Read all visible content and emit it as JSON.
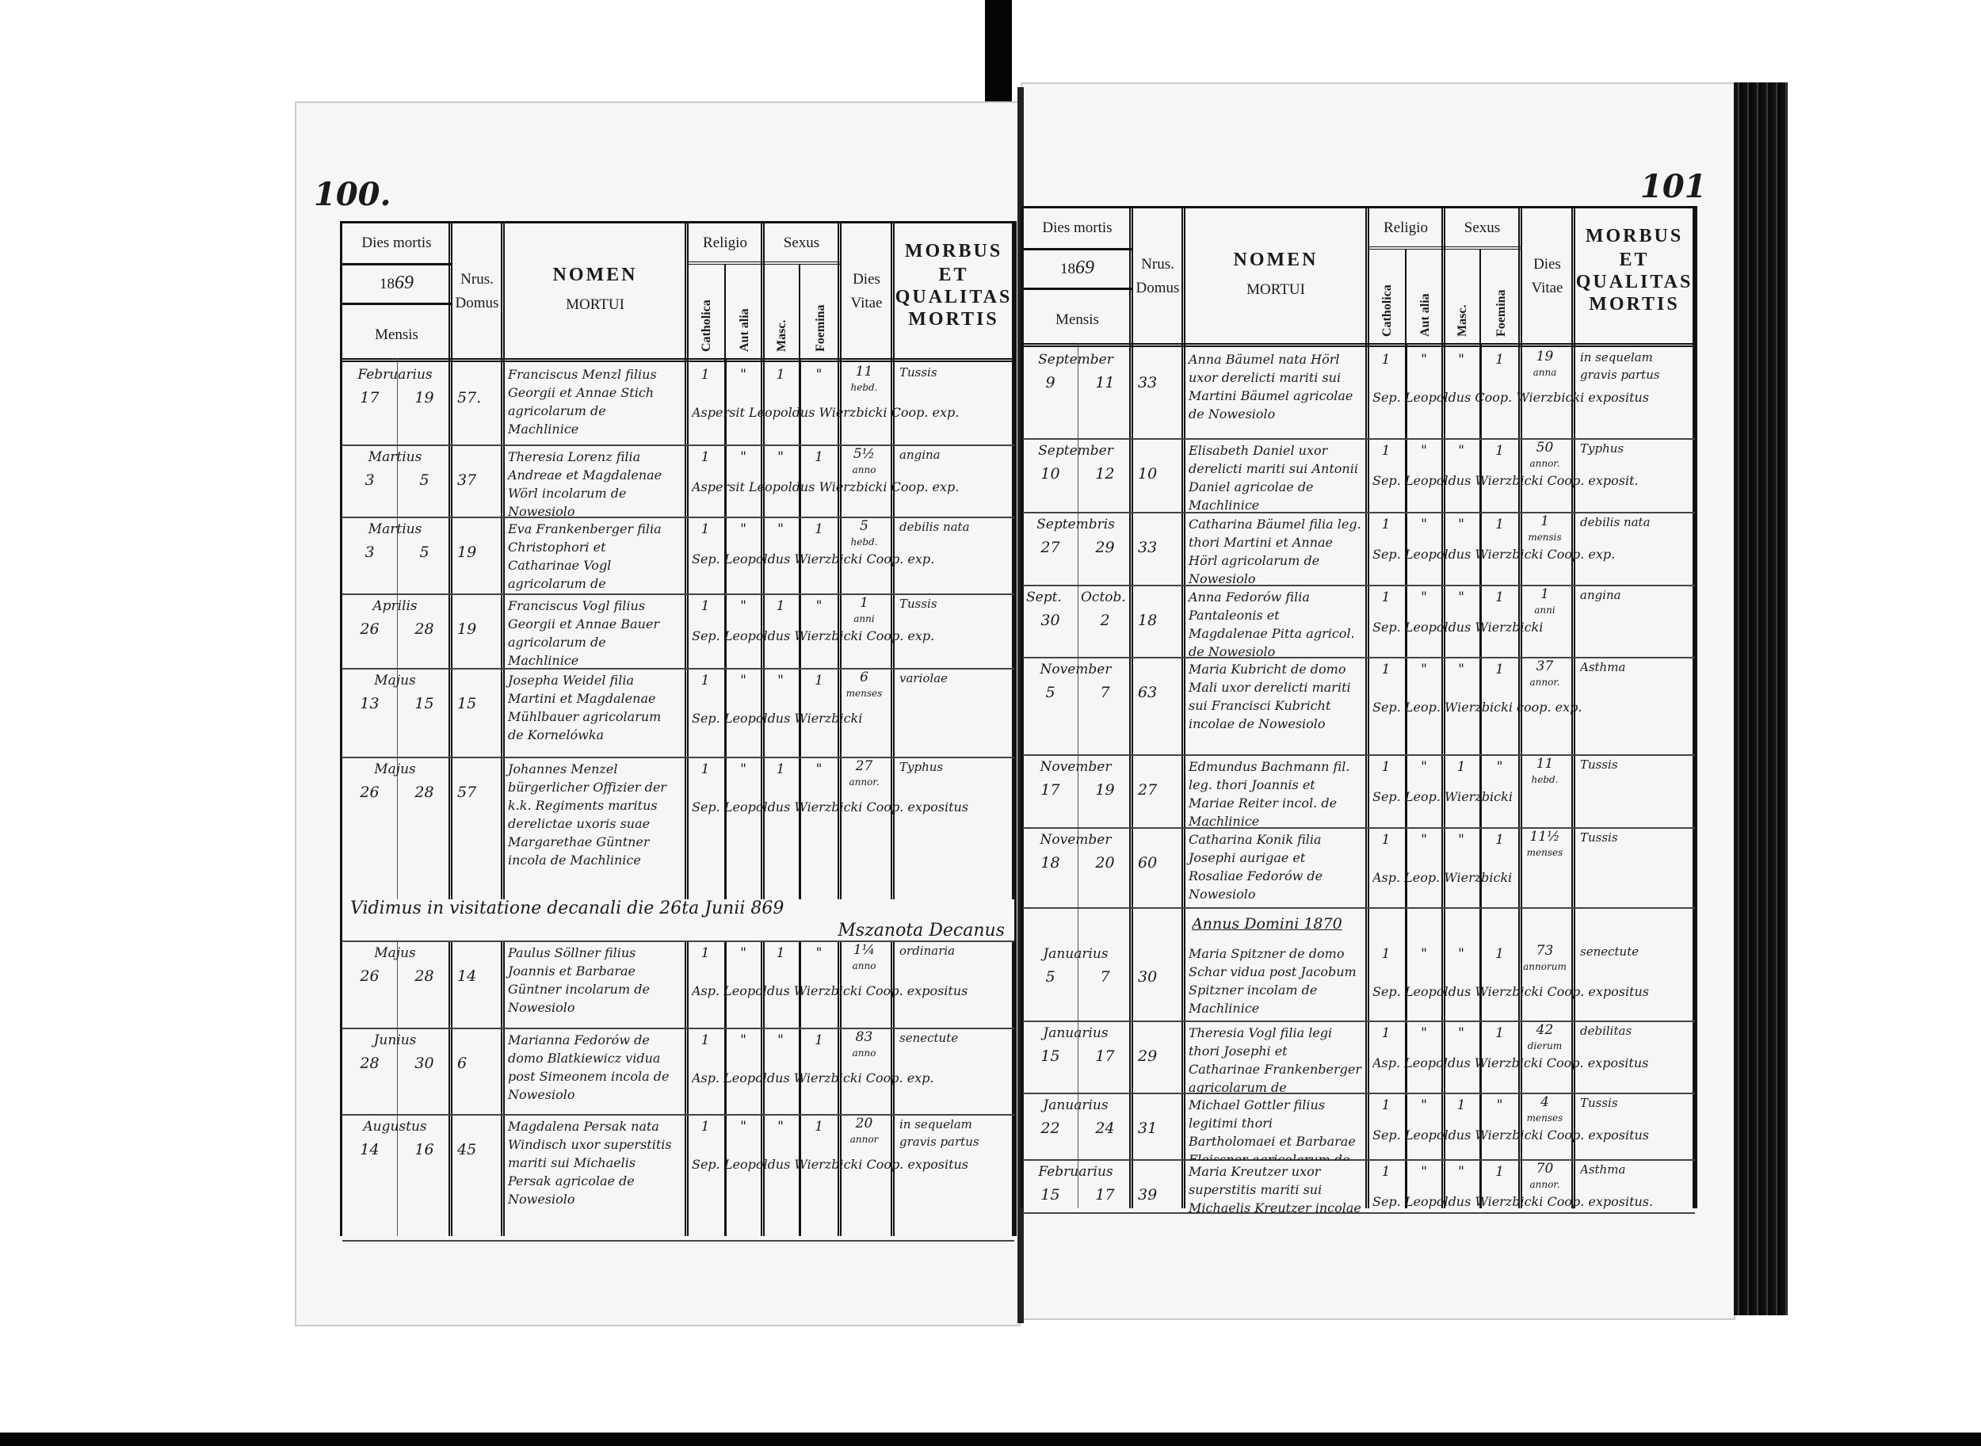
{
  "header": {
    "dies_mortis": "Dies mortis",
    "year_prefix": "18",
    "year_hand": "69",
    "mensis": "Mensis",
    "nrus": "Nrus.",
    "domus": "Domus",
    "nomen": "NOMEN",
    "mortui": "MORTUI",
    "religio": "Religio",
    "catholica": "Catholica",
    "aut_alia": "Aut alia",
    "sexus": "Sexus",
    "masc": "Masc.",
    "foemina": "Foemina",
    "dies": "Dies",
    "vitae": "Vitae",
    "morbus": "MORBUS",
    "et": "ET",
    "qualitas": "QUALITAS",
    "mortis": "MORTIS"
  },
  "pages": [
    {
      "page_number": "100.",
      "rows": [
        {
          "type": "entry",
          "month": "Februarius",
          "d1": "17",
          "d2": "19",
          "domus": "57.",
          "name": "Franciscus Menzl filius Georgii et Annae Stich agricolarum de Machlinice",
          "cath": "1",
          "alia": "\"",
          "masc": "1",
          "foem": "\"",
          "age": "11",
          "unit": "hebd.",
          "morbus": "Tussis",
          "sep": "Aspersit Leopoldus Wierzbicki Coop. exp."
        },
        {
          "type": "entry",
          "month": "Martius",
          "d1": "3",
          "d2": "5",
          "domus": "37",
          "name": "Theresia Lorenz filia Andreae et Magdalenae Wörl incolarum de Nowesiolo",
          "cath": "1",
          "alia": "\"",
          "masc": "\"",
          "foem": "1",
          "age": "5½",
          "unit": "anno",
          "morbus": "angina",
          "sep": "Aspersit Leopoldus Wierzbicki Coop. exp."
        },
        {
          "type": "entry",
          "month": "Martius",
          "d1": "3",
          "d2": "5",
          "domus": "19",
          "name": "Eva Frankenberger filia Christophori et Catharinae Vogl agricolarum de Tezydorówka",
          "cath": "1",
          "alia": "\"",
          "masc": "\"",
          "foem": "1",
          "age": "5",
          "unit": "hebd.",
          "morbus": "debilis nata",
          "sep": "Sep. Leopoldus Wierzbicki Coop. exp."
        },
        {
          "type": "entry",
          "month": "Aprilis",
          "d1": "26",
          "d2": "28",
          "domus": "19",
          "name": "Franciscus Vogl filius Georgii et Annae Bauer agricolarum de Machlinice",
          "cath": "1",
          "alia": "\"",
          "masc": "1",
          "foem": "\"",
          "age": "1",
          "unit": "anni",
          "morbus": "Tussis",
          "sep": "Sep. Leopoldus Wierzbicki Coop. exp."
        },
        {
          "type": "entry",
          "month": "Majus",
          "d1": "13",
          "d2": "15",
          "domus": "15",
          "name": "Josepha Weidel filia Martini et Magdalenae Mühlbauer agricolarum de Kornelówka",
          "cath": "1",
          "alia": "\"",
          "masc": "\"",
          "foem": "1",
          "age": "6",
          "unit": "menses",
          "morbus": "variolae",
          "sep": "Sep. Leopoldus Wierzbicki"
        },
        {
          "type": "entry",
          "month": "Majus",
          "d1": "26",
          "d2": "28",
          "domus": "57",
          "name": "Johannes Menzel bürgerlicher Offizier der k.k. Regiments maritus derelictae uxoris suae Margarethae Güntner incola de Machlinice",
          "cath": "1",
          "alia": "\"",
          "masc": "1",
          "foem": "\"",
          "age": "27",
          "unit": "annor.",
          "morbus": "Typhus",
          "sep": "Sep. Leopoldus Wierzbicki Coop. expositus"
        },
        {
          "type": "note",
          "text": "Vidimus in visitatione decanali die 26ta Junii 869",
          "signature": "Mszanota Decanus"
        },
        {
          "type": "entry",
          "month": "Majus",
          "d1": "26",
          "d2": "28",
          "domus": "14",
          "name": "Paulus Söllner filius Joannis et Barbarae Güntner incolarum de Nowesiolo",
          "cath": "1",
          "alia": "\"",
          "masc": "1",
          "foem": "\"",
          "age": "1¼",
          "unit": "anno",
          "morbus": "ordinaria",
          "sep": "Asp. Leopoldus Wierzbicki Coop. expositus"
        },
        {
          "type": "entry",
          "month": "Junius",
          "d1": "28",
          "d2": "30",
          "domus": "6",
          "name": "Marianna Fedorów de domo Blatkiewicz vidua post Simeonem incola de Nowesiolo",
          "cath": "1",
          "alia": "\"",
          "masc": "\"",
          "foem": "1",
          "age": "83",
          "unit": "anno",
          "morbus": "senectute",
          "sep": "Asp. Leopoldus Wierzbicki Coop. exp."
        },
        {
          "type": "entry",
          "month": "Augustus",
          "d1": "14",
          "d2": "16",
          "domus": "45",
          "name": "Magdalena Persak nata Windisch uxor superstitis mariti sui Michaelis Persak agricolae de Nowesiolo",
          "cath": "1",
          "alia": "\"",
          "masc": "\"",
          "foem": "1",
          "age": "20",
          "unit": "annor",
          "morbus": "in sequelam gravis partus",
          "sep": "Sep. Leopoldus Wierzbicki Coop. expositus"
        }
      ]
    },
    {
      "page_number": "101",
      "rows": [
        {
          "type": "entry",
          "month": "September",
          "d1": "9",
          "d2": "11",
          "domus": "33",
          "name": "Anna Bäumel nata Hörl uxor derelicti mariti sui Martini Bäumel agricolae de Nowesiolo",
          "cath": "1",
          "alia": "\"",
          "masc": "\"",
          "foem": "1",
          "age": "19",
          "unit": "anna",
          "morbus": "in sequelam gravis partus",
          "sep": "Sep. Leopoldus Coop. Wierzbicki expositus"
        },
        {
          "type": "entry",
          "month": "September",
          "d1": "10",
          "d2": "12",
          "domus": "10",
          "name": "Elisabeth Daniel uxor derelicti mariti sui Antonii Daniel agricolae de Machlinice",
          "cath": "1",
          "alia": "\"",
          "masc": "\"",
          "foem": "1",
          "age": "50",
          "unit": "annor.",
          "morbus": "Typhus",
          "sep": "Sep. Leopoldus Wierzbicki Coop. exposit."
        },
        {
          "type": "entry",
          "month": "Septembris",
          "d1": "27",
          "d2": "29",
          "domus": "33",
          "name": "Catharina Bäumel filia leg. thori Martini et Annae Hörl agricolarum de Nowesiolo",
          "cath": "1",
          "alia": "\"",
          "masc": "\"",
          "foem": "1",
          "age": "1",
          "unit": "mensis",
          "morbus": "debilis nata",
          "sep": "Sep. Leopoldus Wierzbicki Coop. exp."
        },
        {
          "type": "entry",
          "month": "Sept.",
          "month2": "Octob.",
          "d1": "30",
          "d2": "2",
          "domus": "18",
          "name": "Anna Fedorów filia Pantaleonis et Magdalenae Pitta agricol. de Nowesiolo",
          "cath": "1",
          "alia": "\"",
          "masc": "\"",
          "foem": "1",
          "age": "1",
          "unit": "anni",
          "morbus": "angina",
          "sep": "Sep. Leopoldus Wierzbicki"
        },
        {
          "type": "entry",
          "month": "November",
          "d1": "5",
          "d2": "7",
          "domus": "63",
          "name": "Maria Kubricht de domo Mali uxor derelicti mariti sui Francisci Kubricht incolae de Nowesiolo",
          "cath": "1",
          "alia": "\"",
          "masc": "\"",
          "foem": "1",
          "age": "37",
          "unit": "annor.",
          "morbus": "Asthma",
          "sep": "Sep. Leop. Wierzbicki coop. exp."
        },
        {
          "type": "entry",
          "month": "November",
          "d1": "17",
          "d2": "19",
          "domus": "27",
          "name": "Edmundus Bachmann fil. leg. thori Joannis et Mariae Reiter incol. de Machlinice",
          "cath": "1",
          "alia": "\"",
          "masc": "1",
          "foem": "\"",
          "age": "11",
          "unit": "hebd.",
          "morbus": "Tussis",
          "sep": "Sep. Leop. Wierzbicki"
        },
        {
          "type": "entry",
          "month": "November",
          "d1": "18",
          "d2": "20",
          "domus": "60",
          "name": "Catharina Konik filia Josephi aurigae et Rosaliae Fedorów de Nowesiolo",
          "cath": "1",
          "alia": "\"",
          "masc": "\"",
          "foem": "1",
          "age": "11½",
          "unit": "menses",
          "morbus": "Tussis",
          "sep": "Asp. Leop. Wierzbicki"
        },
        {
          "type": "year",
          "text": "Annus Domini 1870"
        },
        {
          "type": "entry",
          "month": "Januarius",
          "d1": "5",
          "d2": "7",
          "domus": "30",
          "name": "Maria Spitzner de domo Schar vidua post Jacobum Spitzner incolam de Machlinice",
          "cath": "1",
          "alia": "\"",
          "masc": "\"",
          "foem": "1",
          "age": "73",
          "unit": "annorum",
          "morbus": "senectute",
          "sep": "Sep. Leopoldus Wierzbicki Coop. expositus"
        },
        {
          "type": "entry",
          "month": "Januarius",
          "d1": "15",
          "d2": "17",
          "domus": "29",
          "name": "Theresia Vogl filia legi thori Josephi et Catharinae Frankenberger agricolarum de Tezydorówka",
          "cath": "1",
          "alia": "\"",
          "masc": "\"",
          "foem": "1",
          "age": "42",
          "unit": "dierum",
          "morbus": "debilitas",
          "sep": "Asp. Leopoldus Wierzbicki Coop. expositus"
        },
        {
          "type": "entry",
          "month": "Januarius",
          "d1": "22",
          "d2": "24",
          "domus": "31",
          "name": "Michael Gottler filius legitimi thori Bartholomaei et Barbarae Fleissner agricolarum de Tezydorówka",
          "cath": "1",
          "alia": "\"",
          "masc": "1",
          "foem": "\"",
          "age": "4",
          "unit": "menses",
          "morbus": "Tussis",
          "sep": "Sep. Leopoldus Wierzbicki Coop. expositus"
        },
        {
          "type": "entry",
          "month": "Februarius",
          "d1": "15",
          "d2": "17",
          "domus": "39",
          "name": "Maria Kreutzer uxor superstitis mariti sui Michaelis Kreutzer incolae de Nowesiolo",
          "cath": "1",
          "alia": "\"",
          "masc": "\"",
          "foem": "1",
          "age": "70",
          "unit": "annor.",
          "morbus": "Asthma",
          "sep": "Sep. Leopoldus Wierzbicki Coop. expositus."
        }
      ]
    }
  ]
}
